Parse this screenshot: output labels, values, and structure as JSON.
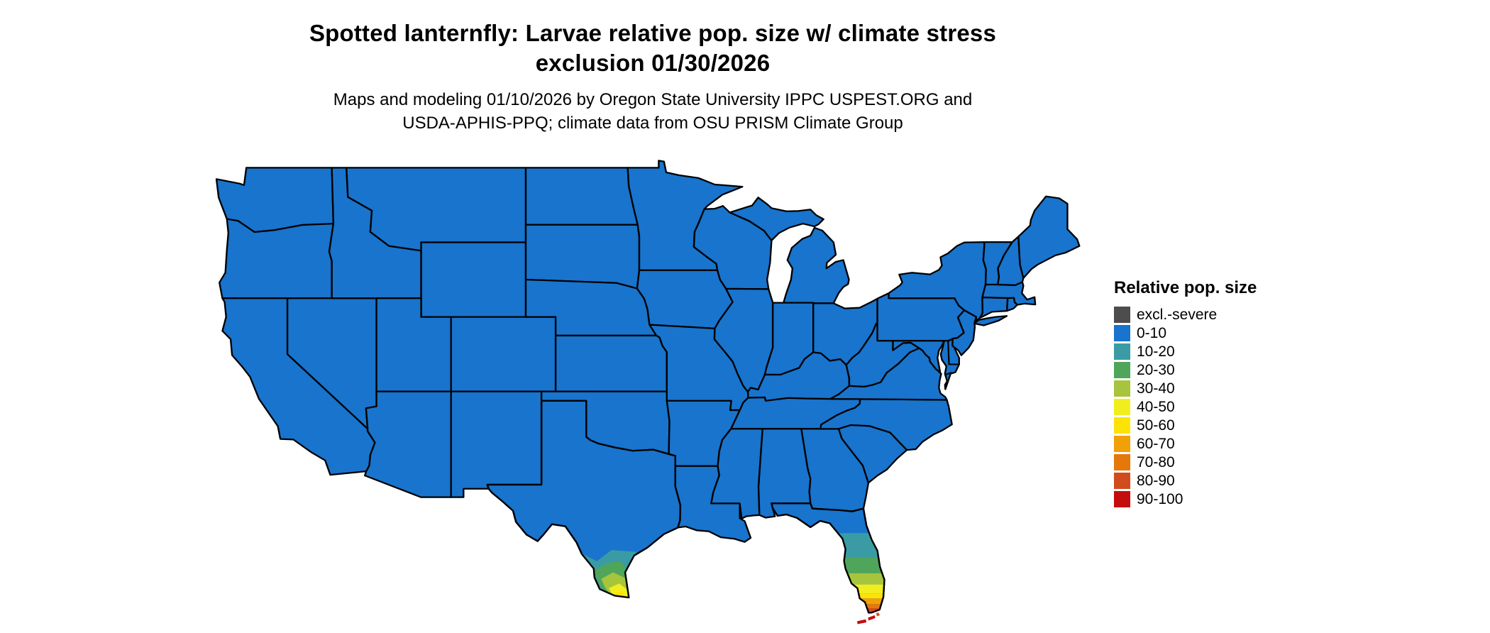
{
  "title": {
    "line1": "Spotted lanternfly: Larvae relative pop. size w/ climate stress",
    "line2": "exclusion 01/30/2026"
  },
  "subtitle": {
    "line1": "Maps and modeling 01/10/2026 by Oregon State University IPPC USPEST.ORG and",
    "line2": "USDA-APHIS-PPQ; climate data from OSU PRISM Climate Group"
  },
  "legend": {
    "title": "Relative pop. size",
    "items": [
      {
        "label": "excl.-severe",
        "color": "#4d4d4d"
      },
      {
        "label": "0-10",
        "color": "#1874cd"
      },
      {
        "label": "10-20",
        "color": "#3a9ba5"
      },
      {
        "label": "20-30",
        "color": "#4fa65a"
      },
      {
        "label": "30-40",
        "color": "#a7c43d"
      },
      {
        "label": "40-50",
        "color": "#f1ee1f"
      },
      {
        "label": "50-60",
        "color": "#fde305"
      },
      {
        "label": "60-70",
        "color": "#f2a007"
      },
      {
        "label": "70-80",
        "color": "#e5780a"
      },
      {
        "label": "80-90",
        "color": "#d24b1c"
      },
      {
        "label": "90-100",
        "color": "#c50d0d"
      }
    ]
  },
  "map": {
    "description": "Contiguous United States choropleth of larvae relative population size",
    "land_fill": "#1874cd",
    "border_color": "#000000",
    "background": "#ffffff",
    "hotspots": [
      {
        "region": "southern-texas",
        "classes": [
          "10-20",
          "20-30",
          "30-40",
          "40-50",
          "50-60"
        ]
      },
      {
        "region": "southern-florida",
        "classes": [
          "10-20",
          "20-30",
          "30-40",
          "40-50",
          "50-60",
          "60-70",
          "70-80",
          "80-90",
          "90-100"
        ]
      },
      {
        "region": "florida-keys",
        "classes": [
          "80-90",
          "90-100"
        ]
      }
    ]
  }
}
